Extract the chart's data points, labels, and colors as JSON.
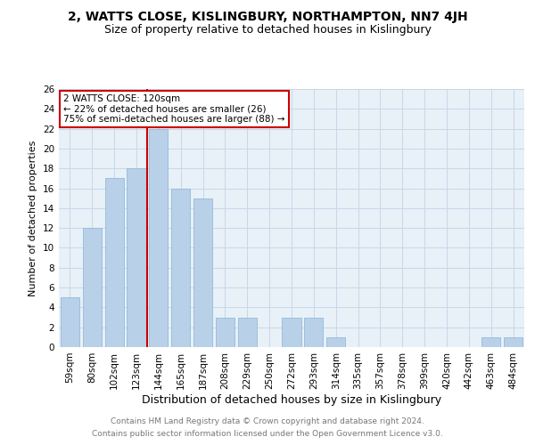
{
  "title1": "2, WATTS CLOSE, KISLINGBURY, NORTHAMPTON, NN7 4JH",
  "title2": "Size of property relative to detached houses in Kislingbury",
  "xlabel": "Distribution of detached houses by size in Kislingbury",
  "ylabel": "Number of detached properties",
  "categories": [
    "59sqm",
    "80sqm",
    "102sqm",
    "123sqm",
    "144sqm",
    "165sqm",
    "187sqm",
    "208sqm",
    "229sqm",
    "250sqm",
    "272sqm",
    "293sqm",
    "314sqm",
    "335sqm",
    "357sqm",
    "378sqm",
    "399sqm",
    "420sqm",
    "442sqm",
    "463sqm",
    "484sqm"
  ],
  "values": [
    5,
    12,
    17,
    18,
    22,
    16,
    15,
    3,
    3,
    0,
    3,
    3,
    1,
    0,
    0,
    0,
    0,
    0,
    0,
    1,
    1
  ],
  "bar_color": "#b8d0e8",
  "bar_edge_color": "#8ab4d4",
  "grid_color": "#c8d8e8",
  "background_color": "#e8f0f8",
  "vline_x": 3.5,
  "vline_color": "#cc0000",
  "annotation_text": "2 WATTS CLOSE: 120sqm\n← 22% of detached houses are smaller (26)\n75% of semi-detached houses are larger (88) →",
  "annotation_box_color": "#cc0000",
  "ylim": [
    0,
    26
  ],
  "yticks": [
    0,
    2,
    4,
    6,
    8,
    10,
    12,
    14,
    16,
    18,
    20,
    22,
    24,
    26
  ],
  "footer1": "Contains HM Land Registry data © Crown copyright and database right 2024.",
  "footer2": "Contains public sector information licensed under the Open Government Licence v3.0.",
  "title1_fontsize": 10,
  "title2_fontsize": 9,
  "xlabel_fontsize": 9,
  "ylabel_fontsize": 8,
  "tick_fontsize": 7.5,
  "annotation_fontsize": 7.5,
  "footer_fontsize": 6.5,
  "footer_color": "#777777"
}
